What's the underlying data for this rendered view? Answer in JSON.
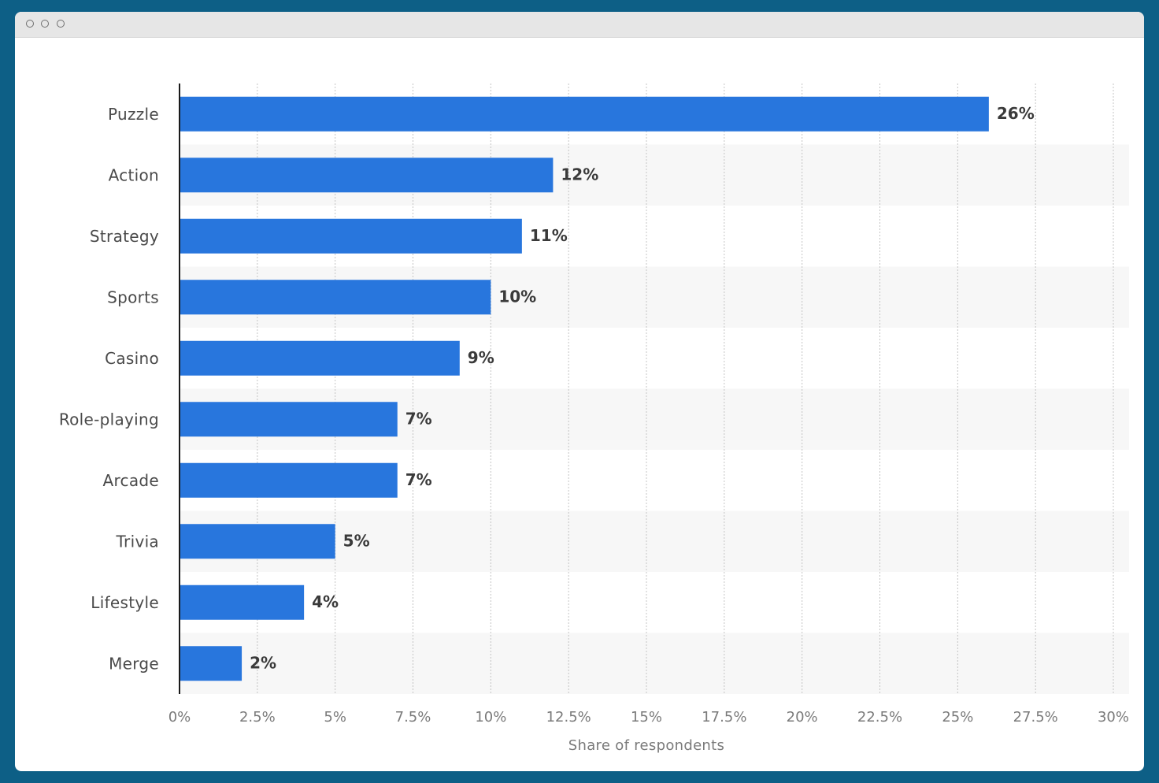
{
  "window": {
    "controls": [
      "window-dot",
      "window-dot",
      "window-dot"
    ]
  },
  "chart_data": {
    "type": "bar",
    "orientation": "horizontal",
    "categories": [
      "Puzzle",
      "Action",
      "Strategy",
      "Sports",
      "Casino",
      "Role-playing",
      "Arcade",
      "Trivia",
      "Lifestyle",
      "Merge"
    ],
    "values": [
      26,
      12,
      11,
      10,
      9,
      7,
      7,
      5,
      4,
      2
    ],
    "value_labels": [
      "26%",
      "12%",
      "11%",
      "10%",
      "9%",
      "7%",
      "7%",
      "5%",
      "4%",
      "2%"
    ],
    "xlim": [
      0,
      30
    ],
    "x_ticks": [
      0,
      2.5,
      5,
      7.5,
      10,
      12.5,
      15,
      17.5,
      20,
      22.5,
      25,
      27.5,
      30
    ],
    "x_tick_labels": [
      "0%",
      "2.5%",
      "5%",
      "7.5%",
      "10%",
      "12.5%",
      "15%",
      "17.5%",
      "20%",
      "22.5%",
      "25%",
      "27.5%",
      "30%"
    ],
    "xlabel": "Share of respondents",
    "ylabel": "",
    "title": "",
    "grid": true,
    "legend": "none",
    "bar_color": "#2876dd",
    "band_color": "#f7f7f7"
  }
}
